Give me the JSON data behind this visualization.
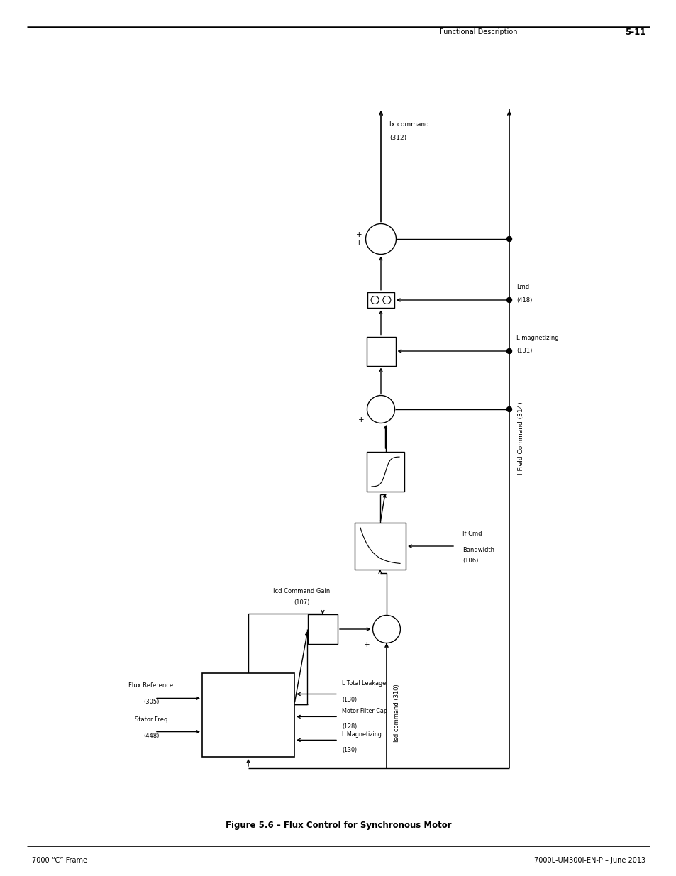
{
  "title": "Figure 5.6 – Flux Control for Synchronous Motor",
  "header_right_text": "Functional Description",
  "header_right_num": "5-11",
  "footer_left": "7000 “C” Frame",
  "footer_right": "7000L-UM300I-EN-P – June 2013",
  "background_color": "#ffffff",
  "line_color": "#000000",
  "text_color": "#000000",
  "fig_w": 9.54,
  "fig_h": 12.35,
  "dpi": 100
}
